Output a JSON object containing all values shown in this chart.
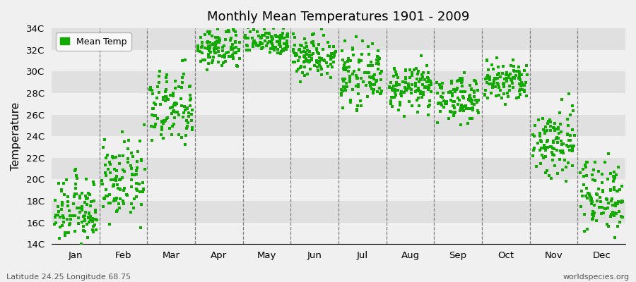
{
  "title": "Monthly Mean Temperatures 1901 - 2009",
  "ylabel": "Temperature",
  "subtitle_left": "Latitude 24.25 Longitude 68.75",
  "subtitle_right": "worldspecies.org",
  "legend_label": "Mean Temp",
  "dot_color": "#11aa00",
  "bg_color": "#f0f0f0",
  "band_colors": [
    "#f0f0f0",
    "#e0e0e0"
  ],
  "ylim": [
    14,
    34
  ],
  "ytick_labels": [
    "14C",
    "16C",
    "18C",
    "20C",
    "22C",
    "24C",
    "26C",
    "28C",
    "30C",
    "32C",
    "34C"
  ],
  "ytick_values": [
    14,
    16,
    18,
    20,
    22,
    24,
    26,
    28,
    30,
    32,
    34
  ],
  "months": [
    "Jan",
    "Feb",
    "Mar",
    "Apr",
    "May",
    "Jun",
    "Jul",
    "Aug",
    "Sep",
    "Oct",
    "Nov",
    "Dec"
  ],
  "month_mean_temps": [
    17.0,
    19.8,
    26.5,
    32.2,
    33.0,
    31.5,
    29.5,
    28.5,
    27.5,
    29.0,
    23.5,
    18.5
  ],
  "month_temp_ranges": [
    3.0,
    3.5,
    3.5,
    2.0,
    1.5,
    2.0,
    2.5,
    2.0,
    2.0,
    2.0,
    3.5,
    3.5
  ],
  "n_years": 109
}
